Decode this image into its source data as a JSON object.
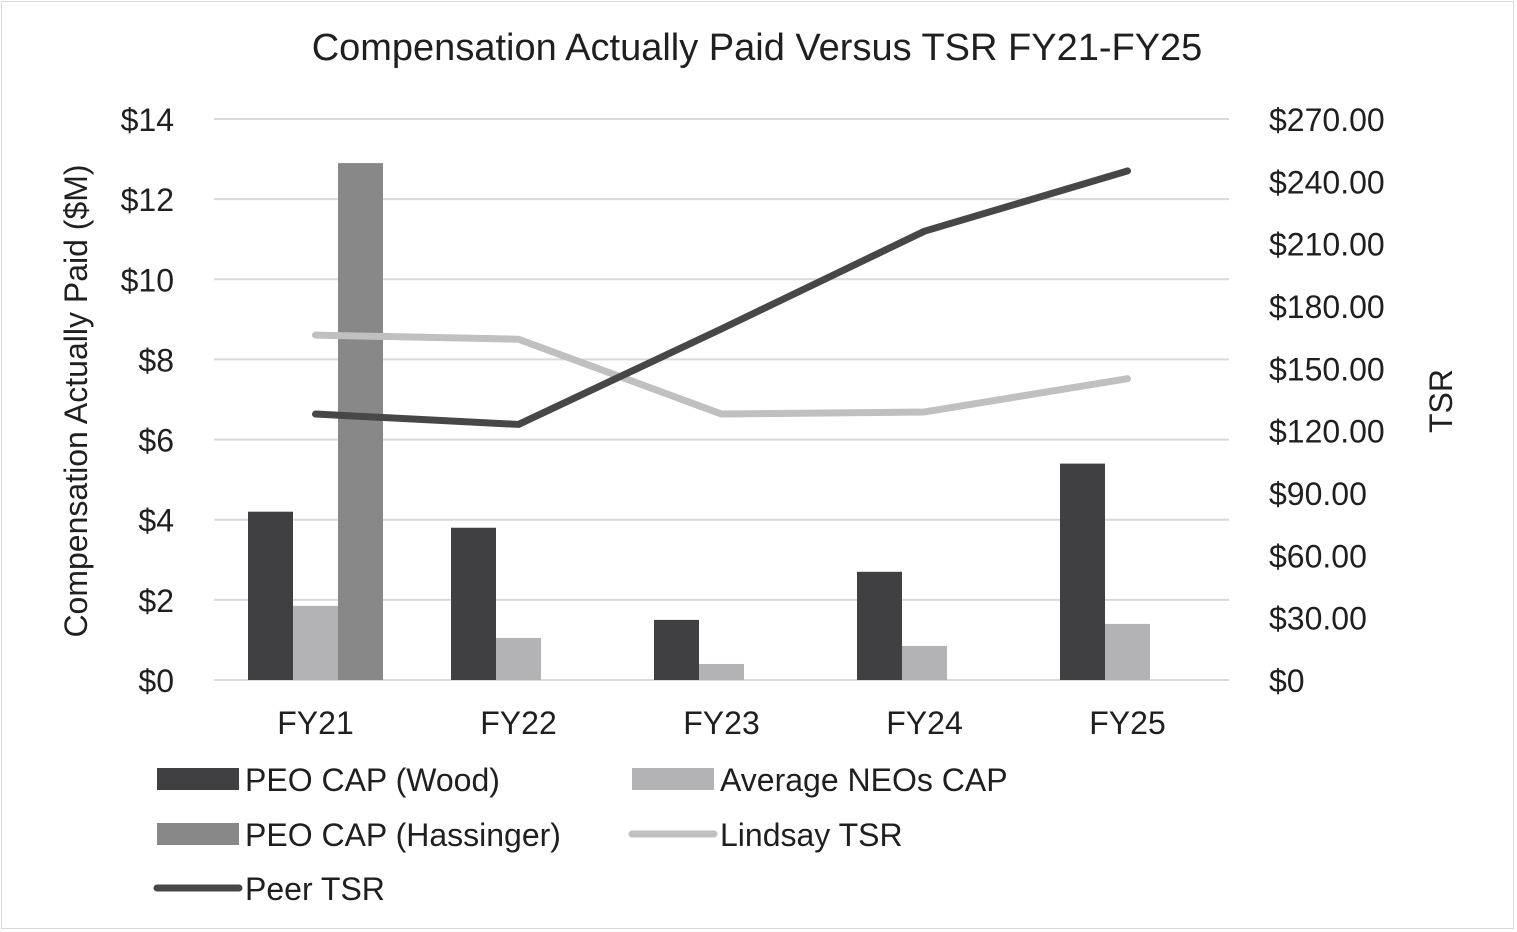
{
  "chart_data": {
    "type": "bar",
    "title": "Compensation Actually Paid Versus TSR FY21-FY25",
    "categories": [
      "FY21",
      "FY22",
      "FY23",
      "FY24",
      "FY25"
    ],
    "ylabel": "Compensation Actually Paid ($M)",
    "y2label": "TSR",
    "ylim": [
      0,
      14
    ],
    "y2lim": [
      0,
      270
    ],
    "yticks": [
      "$0",
      "$2",
      "$4",
      "$6",
      "$8",
      "$10",
      "$12",
      "$14"
    ],
    "y2ticks": [
      "$0",
      "$30.00",
      "$60.00",
      "$90.00",
      "$120.00",
      "$150.00",
      "$180.00",
      "$210.00",
      "$240.00",
      "$270.00"
    ],
    "grid": true,
    "legend_position": "bottom-left",
    "bar_series": [
      {
        "name": "PEO CAP (Wood)",
        "color": "#404042",
        "values": [
          4.2,
          3.8,
          1.5,
          2.7,
          5.4
        ]
      },
      {
        "name": "Average NEOs CAP",
        "color": "#b3b3b5",
        "values": [
          1.85,
          1.05,
          0.4,
          0.85,
          1.4
        ]
      },
      {
        "name": "PEO CAP (Hassinger)",
        "color": "#888888",
        "values": [
          12.9,
          null,
          null,
          null,
          null
        ]
      }
    ],
    "line_series": [
      {
        "name": "Lindsay TSR",
        "color": "#c0c0c0",
        "axis": "right",
        "values": [
          166,
          164,
          128,
          129,
          145
        ]
      },
      {
        "name": "Peer TSR",
        "color": "#474747",
        "axis": "right",
        "values": [
          128,
          123,
          169,
          216,
          245
        ]
      }
    ]
  }
}
